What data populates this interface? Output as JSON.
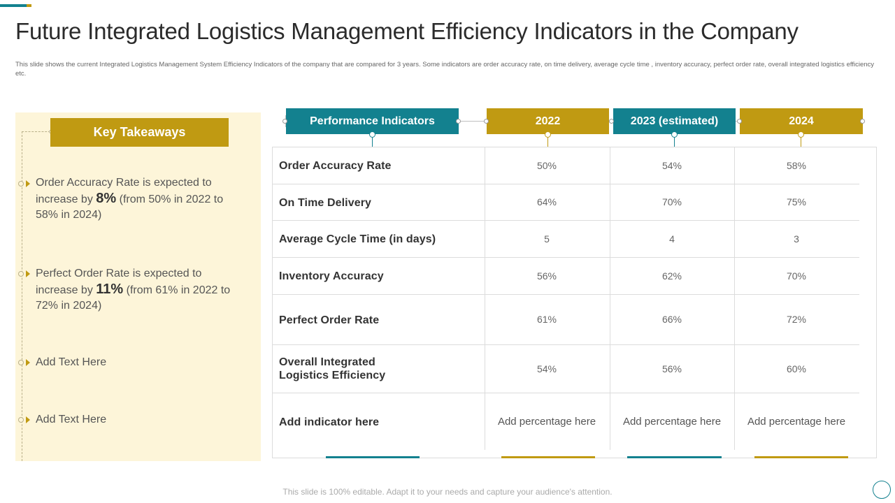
{
  "colors": {
    "teal": "#13818f",
    "gold": "#c09a12",
    "panel": "#fdf5d9"
  },
  "slide": {
    "title": "Future Integrated Logistics Management Efficiency Indicators in the Company",
    "subtitle": "This slide shows the current Integrated Logistics Management  System Efficiency Indicators of the company that are compared for 3 years. Some indicators are order accuracy rate, on time delivery, average cycle time , inventory accuracy, perfect order rate, overall integrated logistics efficiency etc.",
    "footer": "This slide is 100% editable. Adapt it to your needs and capture your audience's attention."
  },
  "takeaways": {
    "title": "Key Takeaways",
    "items": [
      {
        "pre": "Order Accuracy  Rate is expected to increase by ",
        "highlight": "8%",
        "post": " (from 50% in 2022 to 58% in 2024)"
      },
      {
        "pre": "Perfect Order Rate is expected to increase by ",
        "highlight": "11%",
        "post": " (from 61% in 2022 to 72% in 2024)"
      },
      {
        "pre": "Add Text Here",
        "highlight": "",
        "post": ""
      },
      {
        "pre": "Add Text Here",
        "highlight": "",
        "post": ""
      }
    ]
  },
  "table": {
    "headers": [
      "Performance Indicators",
      "2022",
      "2023 (estimated)",
      "2024"
    ],
    "rows": [
      {
        "label": "Order Accuracy Rate",
        "v2022": "50%",
        "v2023": "54%",
        "v2024": "58%"
      },
      {
        "label": "On Time Delivery",
        "v2022": "64%",
        "v2023": "70%",
        "v2024": "75%"
      },
      {
        "label": "Average Cycle Time (in days)",
        "v2022": "5",
        "v2023": "4",
        "v2024": "3"
      },
      {
        "label": "Inventory Accuracy",
        "v2022": "56%",
        "v2023": "62%",
        "v2024": "70%"
      },
      {
        "label": "Perfect Order Rate",
        "v2022": "61%",
        "v2023": "66%",
        "v2024": "72%"
      },
      {
        "label": "Overall Integrated Logistics Efficiency",
        "label_line1": "Overall Integrated",
        "label_line2": "Logistics  Efficiency",
        "v2022": "54%",
        "v2023": "56%",
        "v2024": "60%"
      },
      {
        "label": "Add indicator here",
        "v2022": "Add percentage here",
        "v2023": "Add percentage here",
        "v2024": "Add percentage here"
      }
    ]
  }
}
